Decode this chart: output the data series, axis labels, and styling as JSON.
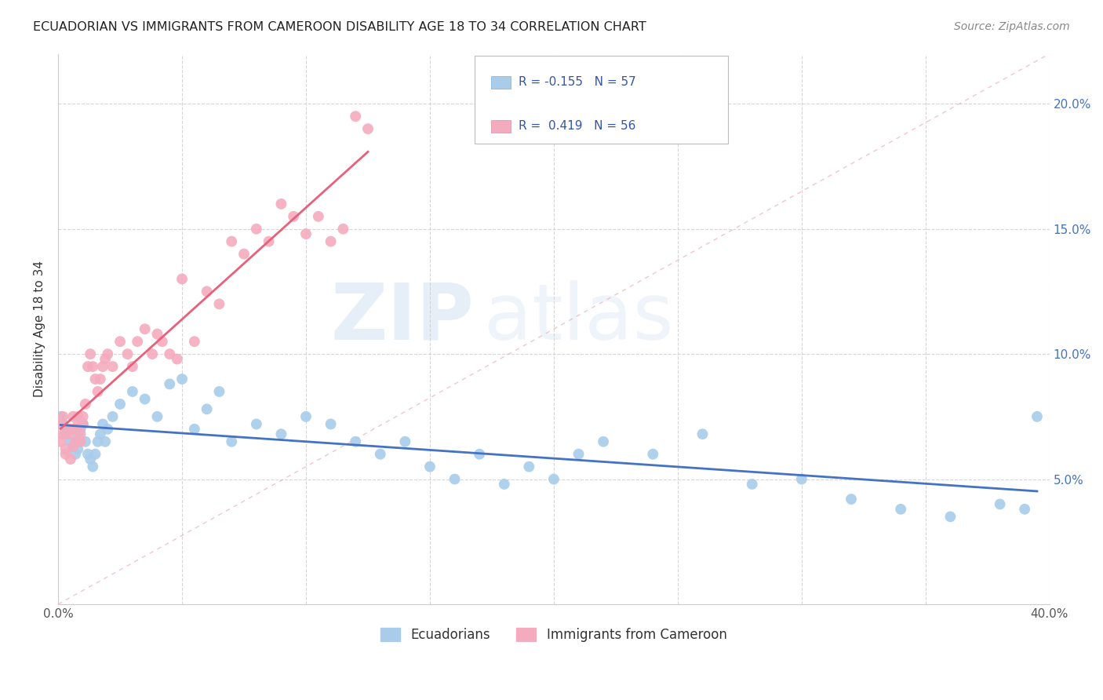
{
  "title": "ECUADORIAN VS IMMIGRANTS FROM CAMEROON DISABILITY AGE 18 TO 34 CORRELATION CHART",
  "source": "Source: ZipAtlas.com",
  "ylabel": "Disability Age 18 to 34",
  "xlim": [
    0.0,
    0.4
  ],
  "ylim": [
    0.0,
    0.22
  ],
  "series1_label": "Ecuadorians",
  "series1_color": "#A8CCEA",
  "series1_line_color": "#4472C4",
  "series1_R": -0.155,
  "series1_N": 57,
  "series2_label": "Immigrants from Cameroon",
  "series2_color": "#F4ABBE",
  "series2_line_color": "#E8607A",
  "series2_R": 0.419,
  "series2_N": 56,
  "watermark_zip": "ZIP",
  "watermark_atlas": "atlas",
  "series1_x": [
    0.001,
    0.002,
    0.003,
    0.004,
    0.005,
    0.006,
    0.007,
    0.008,
    0.008,
    0.009,
    0.01,
    0.011,
    0.012,
    0.013,
    0.014,
    0.015,
    0.016,
    0.017,
    0.018,
    0.019,
    0.02,
    0.022,
    0.025,
    0.03,
    0.035,
    0.04,
    0.045,
    0.05,
    0.055,
    0.06,
    0.065,
    0.07,
    0.08,
    0.09,
    0.1,
    0.11,
    0.12,
    0.13,
    0.14,
    0.15,
    0.16,
    0.17,
    0.18,
    0.19,
    0.2,
    0.21,
    0.22,
    0.24,
    0.26,
    0.28,
    0.3,
    0.32,
    0.34,
    0.36,
    0.38,
    0.39,
    0.395
  ],
  "series1_y": [
    0.075,
    0.072,
    0.068,
    0.07,
    0.065,
    0.063,
    0.06,
    0.062,
    0.068,
    0.07,
    0.072,
    0.065,
    0.06,
    0.058,
    0.055,
    0.06,
    0.065,
    0.068,
    0.072,
    0.065,
    0.07,
    0.075,
    0.08,
    0.085,
    0.082,
    0.075,
    0.088,
    0.09,
    0.07,
    0.078,
    0.085,
    0.065,
    0.072,
    0.068,
    0.075,
    0.072,
    0.065,
    0.06,
    0.065,
    0.055,
    0.05,
    0.06,
    0.048,
    0.055,
    0.05,
    0.06,
    0.065,
    0.06,
    0.068,
    0.048,
    0.05,
    0.042,
    0.038,
    0.035,
    0.04,
    0.038,
    0.075
  ],
  "series2_x": [
    0.001,
    0.001,
    0.002,
    0.002,
    0.003,
    0.003,
    0.004,
    0.005,
    0.005,
    0.006,
    0.006,
    0.007,
    0.007,
    0.008,
    0.008,
    0.009,
    0.009,
    0.01,
    0.01,
    0.011,
    0.012,
    0.013,
    0.014,
    0.015,
    0.016,
    0.017,
    0.018,
    0.019,
    0.02,
    0.022,
    0.025,
    0.028,
    0.03,
    0.032,
    0.035,
    0.038,
    0.04,
    0.042,
    0.045,
    0.048,
    0.05,
    0.055,
    0.06,
    0.065,
    0.07,
    0.075,
    0.08,
    0.085,
    0.09,
    0.095,
    0.1,
    0.105,
    0.11,
    0.115,
    0.12,
    0.125
  ],
  "series2_y": [
    0.072,
    0.065,
    0.075,
    0.068,
    0.06,
    0.062,
    0.068,
    0.058,
    0.07,
    0.063,
    0.075,
    0.065,
    0.07,
    0.072,
    0.075,
    0.065,
    0.068,
    0.072,
    0.075,
    0.08,
    0.095,
    0.1,
    0.095,
    0.09,
    0.085,
    0.09,
    0.095,
    0.098,
    0.1,
    0.095,
    0.105,
    0.1,
    0.095,
    0.105,
    0.11,
    0.1,
    0.108,
    0.105,
    0.1,
    0.098,
    0.13,
    0.105,
    0.125,
    0.12,
    0.145,
    0.14,
    0.15,
    0.145,
    0.16,
    0.155,
    0.148,
    0.155,
    0.145,
    0.15,
    0.195,
    0.19
  ]
}
